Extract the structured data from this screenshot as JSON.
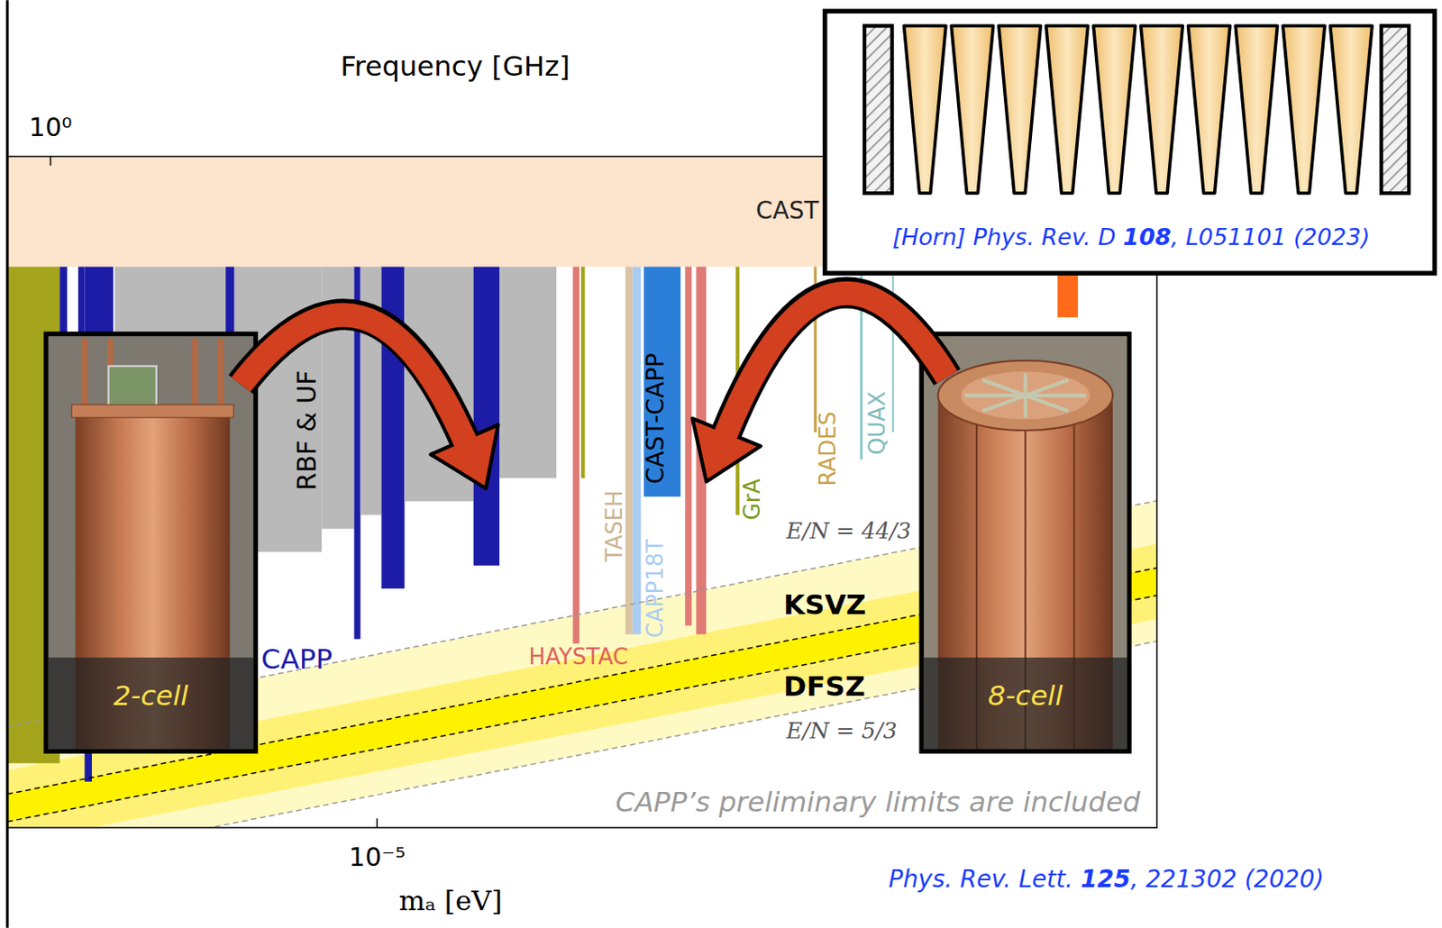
{
  "chart_data": {
    "type": "exclusion",
    "log": true,
    "grid": false,
    "tick_labels": "x",
    "x_label": "mₐ [eV]",
    "xlim": [
      3.68e-06,
      8.237e-05
    ],
    "xticks": [
      {
        "value": 1e-05,
        "label": "10⁻⁵"
      }
    ],
    "x2_label": "Frequency [GHz]",
    "x2lim": [
      0.8898,
      19.92
    ],
    "x2ticks": [
      {
        "value": 1,
        "label": "10⁰"
      }
    ],
    "ylim": [
      1e-16,
      1e-12
    ],
    "cast": {
      "label": "CAST",
      "color": "#fde4cc",
      "g": 2.2e-13
    },
    "regions": [
      {
        "x": [
          3.68e-06,
          4.24e-06
        ],
        "g": 2.42e-16,
        "color": "#a4a41c"
      },
      {
        "x": [
          4.24e-06,
          4.325e-06
        ],
        "g": 4.4e-15,
        "color": "#1c1ca6"
      },
      {
        "x": [
          4.457e-06,
          4.535e-06
        ],
        "g": 1.25e-15,
        "color": "#1c1ca6"
      },
      {
        "x": [
          4.535e-06,
          4.625e-06
        ],
        "g": 1.88e-16,
        "color": "#1c1ca6"
      },
      {
        "x": [
          4.625e-06,
          4.9e-06
        ],
        "g": 7.3e-15,
        "color": "#1c1ca6"
      },
      {
        "x": [
          4.92e-06,
          6.64e-06
        ],
        "g": 5.67e-15,
        "color": "#b9b9b9"
      },
      {
        "x": [
          6.64e-06,
          6.8e-06
        ],
        "g": 1.25e-15,
        "color": "#1c1ca6"
      },
      {
        "x": [
          6.8e-06,
          8.61e-06
        ],
        "g": 4.4e-15,
        "color": "#b9b9b9"
      },
      {
        "x": [
          8.61e-06,
          9.4e-06
        ],
        "g": 6.04e-15,
        "color": "#b9b9b9"
      },
      {
        "x": [
          9.4e-06,
          9.56e-06
        ],
        "g": 1.33e-15,
        "color": "#1c1ca6"
      },
      {
        "x": [
          9.56e-06,
          1.012e-05
        ],
        "g": 7.3e-15,
        "color": "#b9b9b9"
      },
      {
        "x": [
          1.012e-05,
          1.077e-05
        ],
        "g": 2.66e-15,
        "color": "#1c1ca6"
      },
      {
        "x": [
          1.077e-05,
          1.298e-05
        ],
        "g": 8.81e-15,
        "color": "#b9b9b9"
      },
      {
        "x": [
          1.298e-05,
          1.392e-05
        ],
        "g": 3.65e-15,
        "color": "#1c1ca6"
      },
      {
        "x": [
          1.392e-05,
          1.624e-05
        ],
        "g": 1.21e-14,
        "color": "#b9b9b9"
      },
      {
        "x": [
          1.698e-05,
          1.728e-05
        ],
        "g": 1.25e-15,
        "color": "#e07a74"
      },
      {
        "x": [
          1.736e-05,
          1.754e-05
        ],
        "g": 1.21e-14,
        "color": "#a4a41c"
      },
      {
        "x": [
          1.957e-05,
          1.996e-05
        ],
        "g": 1.42e-15,
        "color": "#dcc3a4"
      },
      {
        "x": [
          1.996e-05,
          2.041e-05
        ],
        "g": 1.42e-15,
        "color": "#a9cdf2"
      },
      {
        "x": [
          2.057e-05,
          2.272e-05
        ],
        "g": 9.39e-15,
        "color": "#2c7fd9"
      },
      {
        "x": [
          2.3e-05,
          2.341e-05
        ],
        "g": 1.6e-15,
        "color": "#e07a74"
      },
      {
        "x": [
          2.37e-05,
          2.435e-05
        ],
        "g": 1.42e-15,
        "color": "#e07a74"
      },
      {
        "x": [
          2.637e-05,
          2.664e-05
        ],
        "g": 7.3e-15,
        "color": "#a4a41c"
      },
      {
        "x": [
          3.258e-05,
          3.283e-05
        ],
        "g": 2.27e-14,
        "color": "#c9a24a"
      },
      {
        "x": [
          3.69e-05,
          3.717e-05
        ],
        "g": 1.56e-14,
        "color": "#8fcaca"
      },
      {
        "x": [
          4.025e-05,
          4.045e-05
        ],
        "g": 2.27e-14,
        "color": "#8fcaca"
      },
      {
        "x": [
          6.297e-05,
          6.653e-05
        ],
        "g": 1.1e-13,
        "color": "#ff6b1a"
      }
    ],
    "bands": [
      {
        "color": "#fff9c4",
        "x": [
          3.68e-06,
          8.237e-05
        ],
        "lower": [
          5.78e-17,
          1.29e-15
        ],
        "upper": [
          3.98e-16,
          8.87e-15
        ]
      },
      {
        "color": "#fff176",
        "x": [
          3.68e-06,
          8.237e-05
        ],
        "lower": [
          8e-17,
          1.75e-15
        ],
        "upper": [
          2.2e-16,
          4.9e-15
        ]
      },
      {
        "color": "#fff200",
        "x": [
          3.68e-06,
          8.237e-05
        ],
        "lower": [
          1.086e-16,
          2.42e-15
        ],
        "upper": [
          1.585e-16,
          3.53e-15
        ]
      }
    ],
    "series": [
      {
        "name": "E/N = 44/3",
        "color": "#999999",
        "line_style": "dashed",
        "x": [
          3.68e-06,
          8.237e-05
        ],
        "values": [
          3.98e-16,
          8.87e-15
        ]
      },
      {
        "name": "KSVZ",
        "color": "#000000",
        "line_style": "dashed",
        "x": [
          3.68e-06,
          8.237e-05
        ],
        "values": [
          1.585e-16,
          3.53e-15
        ]
      },
      {
        "name": "DFSZ",
        "color": "#000000",
        "line_style": "dashed",
        "x": [
          3.68e-06,
          8.237e-05
        ],
        "values": [
          1.086e-16,
          2.42e-15
        ]
      },
      {
        "name": "E/N = 5/3",
        "color": "#999999",
        "line_style": "dashed",
        "x": [
          3.68e-06,
          8.237e-05
        ],
        "values": [
          5.78e-17,
          1.29e-15
        ]
      }
    ],
    "labels": [
      {
        "text": "RBF & UF",
        "color": "#000000"
      },
      {
        "text": "CAPP",
        "color": "#1c1ca6"
      },
      {
        "text": "TASEH",
        "color": "#cbb393"
      },
      {
        "text": "CAPP18T",
        "color": "#a9cdf2"
      },
      {
        "text": "CAST-CAPP",
        "color": "#000000"
      },
      {
        "text": "HAYSTAC",
        "color": "#e0605a"
      },
      {
        "text": "GrA",
        "color": "#7c9a1e"
      },
      {
        "text": "RADES",
        "color": "#c9a24a"
      },
      {
        "text": "QUAX",
        "color": "#7fbcbc"
      }
    ],
    "note": "CAPP’s preliminary limits are included"
  },
  "photos": [
    {
      "label": "2-cell"
    },
    {
      "label": "8-cell"
    }
  ],
  "inset": {
    "citation": {
      "prefix": "[Horn] Phys. Rev. D ",
      "volume": "108",
      "suffix": ", L051101 (2023)"
    }
  },
  "citation": {
    "prefix": "Phys. Rev. Lett. ",
    "volume": "125",
    "suffix": ", 221302 (2020)"
  }
}
